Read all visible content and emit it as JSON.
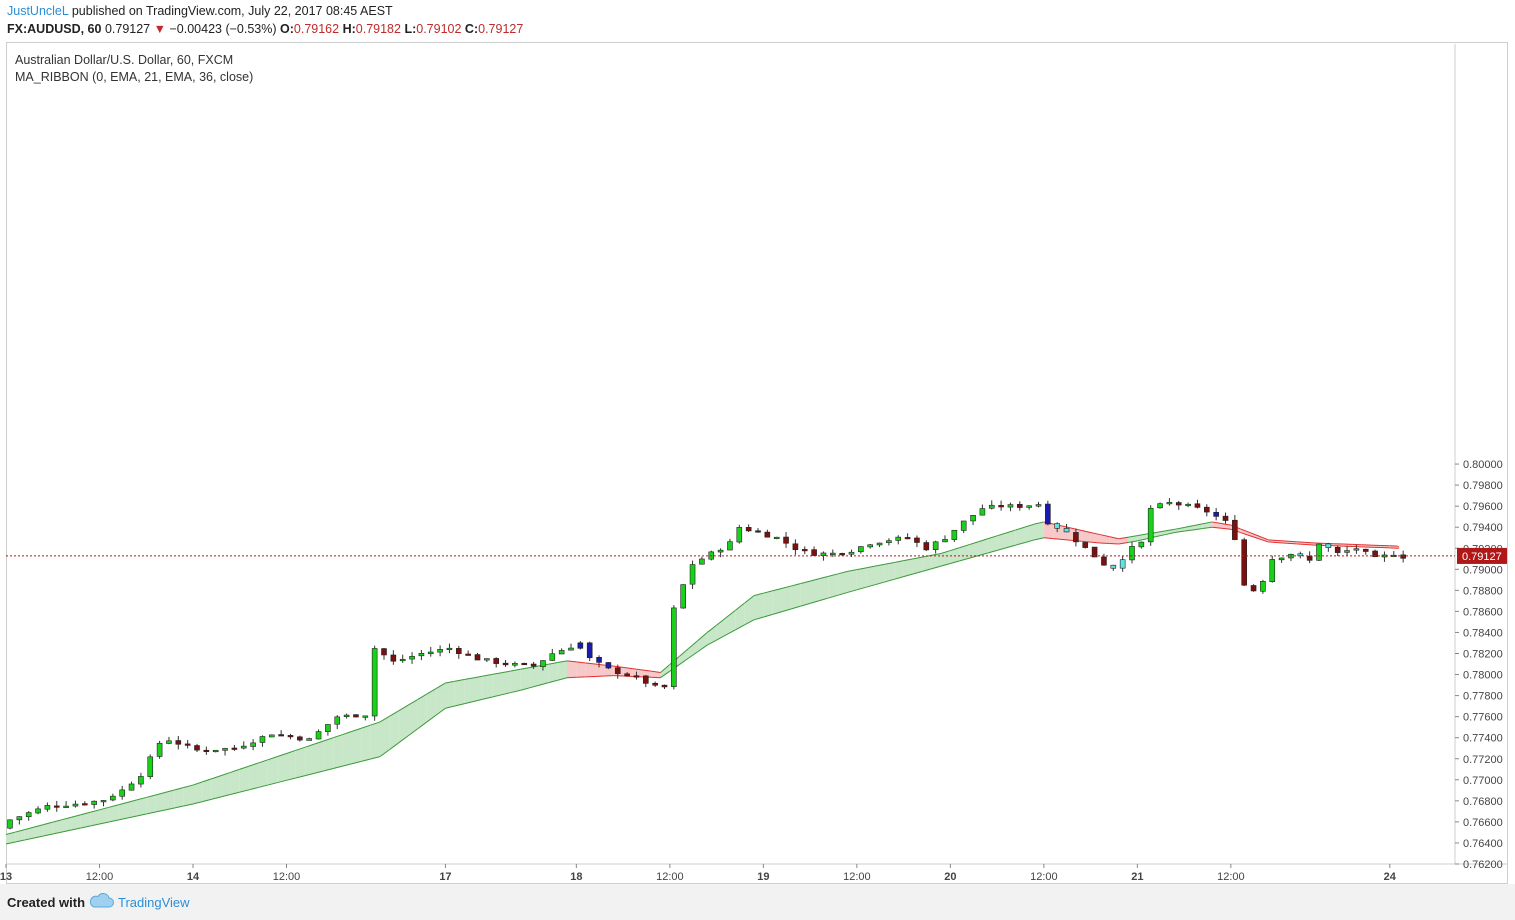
{
  "header": {
    "author": "JustUncleL",
    "published": "published on TradingView.com, July 22, 2017 08:45 AEST",
    "symbol": "FX:AUDUSD, 60",
    "last": "0.79127",
    "change_arrow": "▼",
    "change": "−0.00423 (−0.53%)",
    "o_label": "O:",
    "o": "0.79162",
    "h_label": "H:",
    "h": "0.79182",
    "l_label": "L:",
    "l": "0.79102",
    "c_label": "C:",
    "c": "0.79127"
  },
  "legend": {
    "title": "Australian Dollar/U.S. Dollar, 60, FXCM",
    "indicator": "MA_RIBBON (0, EMA, 21, EMA, 36, close)"
  },
  "footer": {
    "created": "Created with",
    "brand": "TradingView",
    "logo_icon": "cloud-logo-icon"
  },
  "colors": {
    "up": "#19d119",
    "down": "#7a1010",
    "blue": "#1a1ab0",
    "cyan": "#5fe3e3",
    "ribbon_up_fill": "#c8e6c8",
    "ribbon_up_line": "#3a9a3a",
    "ribbon_dn_fill": "#f6c8c8",
    "ribbon_dn_line": "#e03030",
    "last_price": "#b01818"
  },
  "chart_data": {
    "type": "candlestick",
    "ylim": [
      0.762,
      0.8005
    ],
    "y_ticks": [
      "0.80000",
      "0.79800",
      "0.79600",
      "0.79400",
      "0.79200",
      "0.79000",
      "0.78800",
      "0.78600",
      "0.78400",
      "0.78200",
      "0.78000",
      "0.77800",
      "0.77600",
      "0.77400",
      "0.77200",
      "0.77000",
      "0.76800",
      "0.76600",
      "0.76400",
      "0.76200"
    ],
    "x_ticks": [
      {
        "label": "13",
        "bar": 0
      },
      {
        "label": "12:00",
        "bar": 10
      },
      {
        "label": "14",
        "bar": 20
      },
      {
        "label": "12:00",
        "bar": 30
      },
      {
        "label": "17",
        "bar": 47
      },
      {
        "label": "18",
        "bar": 61
      },
      {
        "label": "12:00",
        "bar": 71
      },
      {
        "label": "19",
        "bar": 81
      },
      {
        "label": "12:00",
        "bar": 91
      },
      {
        "label": "20",
        "bar": 101
      },
      {
        "label": "12:00",
        "bar": 111
      },
      {
        "label": "21",
        "bar": 121
      },
      {
        "label": "12:00",
        "bar": 131
      },
      {
        "label": "24",
        "bar": 148
      }
    ],
    "last_price": "0.79127",
    "last_price_value": 0.79127,
    "anchors": [
      [
        0,
        0.7662
      ],
      [
        4,
        0.7675
      ],
      [
        8,
        0.7678
      ],
      [
        10,
        0.7681
      ],
      [
        12,
        0.769
      ],
      [
        14,
        0.7705
      ],
      [
        16,
        0.7735
      ],
      [
        17,
        0.7738
      ],
      [
        20,
        0.7728
      ],
      [
        24,
        0.773
      ],
      [
        28,
        0.7744
      ],
      [
        32,
        0.7738
      ],
      [
        35,
        0.776
      ],
      [
        38,
        0.7762
      ],
      [
        39,
        0.7825
      ],
      [
        41,
        0.7812
      ],
      [
        44,
        0.782
      ],
      [
        47,
        0.7825
      ],
      [
        50,
        0.7815
      ],
      [
        53,
        0.781
      ],
      [
        56,
        0.7808
      ],
      [
        58,
        0.782
      ],
      [
        61,
        0.783
      ],
      [
        62,
        0.7815
      ],
      [
        64,
        0.7805
      ],
      [
        67,
        0.7797
      ],
      [
        69,
        0.7788
      ],
      [
        70,
        0.7788
      ],
      [
        71,
        0.7862
      ],
      [
        72,
        0.7885
      ],
      [
        73,
        0.7905
      ],
      [
        75,
        0.7915
      ],
      [
        77,
        0.7925
      ],
      [
        78,
        0.794
      ],
      [
        80,
        0.7935
      ],
      [
        82,
        0.793
      ],
      [
        84,
        0.792
      ],
      [
        86,
        0.7915
      ],
      [
        88,
        0.7915
      ],
      [
        90,
        0.7918
      ],
      [
        92,
        0.7925
      ],
      [
        94,
        0.7928
      ],
      [
        96,
        0.793
      ],
      [
        98,
        0.792
      ],
      [
        100,
        0.793
      ],
      [
        102,
        0.7945
      ],
      [
        104,
        0.7958
      ],
      [
        106,
        0.796
      ],
      [
        108,
        0.796
      ],
      [
        110,
        0.7962
      ],
      [
        111,
        0.7945
      ],
      [
        113,
        0.7935
      ],
      [
        115,
        0.792
      ],
      [
        117,
        0.7905
      ],
      [
        118,
        0.7902
      ],
      [
        120,
        0.792
      ],
      [
        121,
        0.7925
      ],
      [
        122,
        0.7958
      ],
      [
        124,
        0.7963
      ],
      [
        126,
        0.796
      ],
      [
        128,
        0.7955
      ],
      [
        129,
        0.795
      ],
      [
        130,
        0.7945
      ],
      [
        131,
        0.793
      ],
      [
        132,
        0.7885
      ],
      [
        133,
        0.788
      ],
      [
        134,
        0.789
      ],
      [
        135,
        0.791
      ],
      [
        137,
        0.7915
      ],
      [
        139,
        0.7908
      ],
      [
        140,
        0.7925
      ],
      [
        142,
        0.7915
      ],
      [
        144,
        0.792
      ],
      [
        146,
        0.791
      ],
      [
        148,
        0.7915
      ],
      [
        149,
        0.7912
      ]
    ],
    "ribbon_fast_anchors": [
      [
        0,
        0.7648
      ],
      [
        20,
        0.7695
      ],
      [
        40,
        0.7755
      ],
      [
        47,
        0.7792
      ],
      [
        55,
        0.7805
      ],
      [
        60,
        0.7813
      ],
      [
        65,
        0.7808
      ],
      [
        70,
        0.7802
      ],
      [
        75,
        0.784
      ],
      [
        80,
        0.7875
      ],
      [
        90,
        0.7898
      ],
      [
        100,
        0.7915
      ],
      [
        110,
        0.7943
      ],
      [
        111,
        0.7945
      ],
      [
        117,
        0.7933
      ],
      [
        119,
        0.7929
      ],
      [
        121,
        0.7932
      ],
      [
        125,
        0.7938
      ],
      [
        129,
        0.7945
      ],
      [
        131,
        0.7942
      ],
      [
        135,
        0.7928
      ],
      [
        140,
        0.7925
      ],
      [
        149,
        0.7922
      ]
    ],
    "ribbon_slow_anchors": [
      [
        0,
        0.7639
      ],
      [
        20,
        0.7677
      ],
      [
        40,
        0.7722
      ],
      [
        47,
        0.7768
      ],
      [
        55,
        0.7785
      ],
      [
        60,
        0.7797
      ],
      [
        65,
        0.7799
      ],
      [
        70,
        0.7797
      ],
      [
        75,
        0.7828
      ],
      [
        80,
        0.7852
      ],
      [
        90,
        0.7878
      ],
      [
        100,
        0.7903
      ],
      [
        110,
        0.7928
      ],
      [
        111,
        0.793
      ],
      [
        117,
        0.7925
      ],
      [
        119,
        0.7924
      ],
      [
        121,
        0.7927
      ],
      [
        125,
        0.7935
      ],
      [
        129,
        0.794
      ],
      [
        131,
        0.7938
      ],
      [
        135,
        0.7926
      ],
      [
        140,
        0.7923
      ],
      [
        149,
        0.792
      ]
    ],
    "blue_bars": [
      61,
      62,
      63,
      64,
      111,
      129
    ],
    "cyan_bars": [
      112,
      113,
      118,
      119,
      138,
      141
    ]
  }
}
